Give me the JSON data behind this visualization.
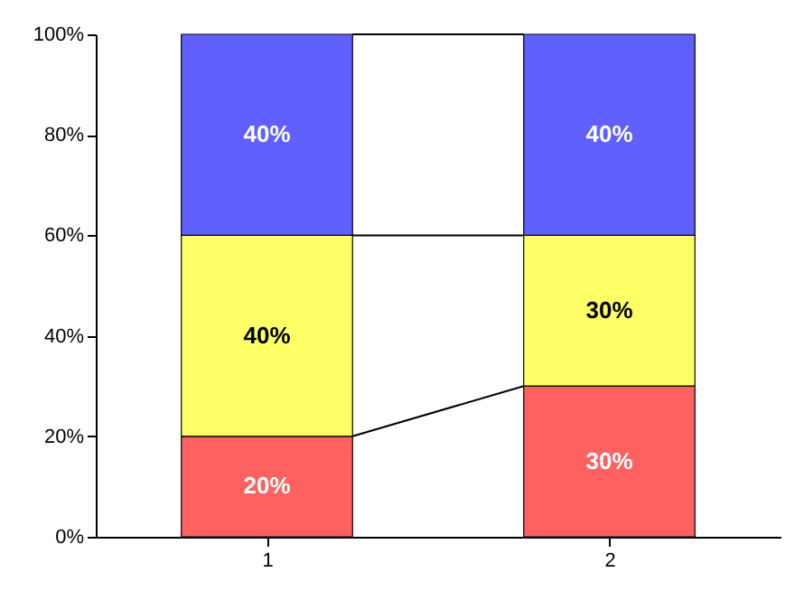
{
  "chart_data": {
    "type": "bar",
    "stacked": true,
    "categories": [
      "1",
      "2"
    ],
    "series": [
      {
        "color": "#ff6060",
        "values": [
          20,
          30
        ],
        "value_labels": [
          "20%",
          "30%"
        ]
      },
      {
        "color": "#ffff66",
        "values": [
          40,
          30
        ],
        "value_labels": [
          "40%",
          "30%"
        ]
      },
      {
        "color": "#6060ff",
        "values": [
          40,
          40
        ],
        "value_labels": [
          "40%",
          "40%"
        ]
      }
    ],
    "ylim": [
      0,
      100
    ],
    "yticks": [
      {
        "value": 0,
        "label": "0%"
      },
      {
        "value": 20,
        "label": "20%"
      },
      {
        "value": 40,
        "label": "40%"
      },
      {
        "value": 60,
        "label": "60%"
      },
      {
        "value": 80,
        "label": "80%"
      },
      {
        "value": 100,
        "label": "100%"
      }
    ],
    "grid": false
  }
}
